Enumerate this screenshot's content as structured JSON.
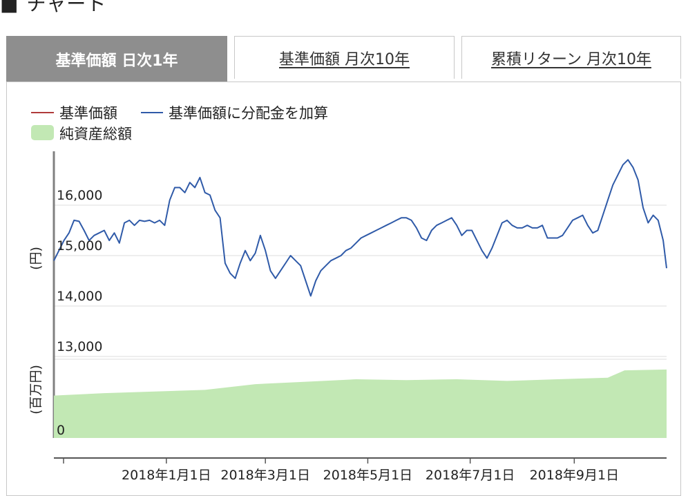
{
  "section": {
    "marker": "■",
    "title": "チャート"
  },
  "tabs": [
    {
      "label": "基準価額 日次1年",
      "active": true
    },
    {
      "label": "基準価額 月次10年",
      "active": false
    },
    {
      "label": "累積リターン 月次10年",
      "active": false
    }
  ],
  "colors": {
    "nav_line": "#b03a3a",
    "nav_dividend_line": "#2f5aa8",
    "net_assets_fill": "#c2e8b4",
    "grid": "#dddddd",
    "axis": "#808080",
    "active_tab": "#8e8e8e"
  },
  "chart_data": {
    "type": "line",
    "legend": [
      {
        "name": "基準価額",
        "marker": "line",
        "color": "#b03a3a"
      },
      {
        "name": "基準価額に分配金を加算",
        "marker": "line",
        "color": "#2f5aa8"
      },
      {
        "name": "純資産総額",
        "marker": "area",
        "color": "#c2e8b4"
      }
    ],
    "y_unit": "(円)",
    "y2_unit": "(百万円)",
    "yticks": [
      13000,
      14000,
      15000,
      16000
    ],
    "ytick_labels": [
      "13,000",
      "14,000",
      "15,000",
      "16,000"
    ],
    "ylim": [
      13000,
      17000
    ],
    "y2_label": "0",
    "xlim": [
      "2017-10-26",
      "2018-10-26"
    ],
    "xticks": [
      "2018-01-01",
      "2018-03-01",
      "2018-05-01",
      "2018-07-01",
      "2018-09-01"
    ],
    "xtick_labels": [
      "2018年1月1日",
      "2018年3月1日",
      "2018年5月1日",
      "2018年7月1日",
      "2018年9月1日"
    ],
    "series": [
      {
        "name": "基準価額に分配金を加算",
        "x": [
          "2017-10-26",
          "2017-10-29",
          "2017-11-01",
          "2017-11-04",
          "2017-11-07",
          "2017-11-10",
          "2017-11-13",
          "2017-11-16",
          "2017-11-19",
          "2017-11-22",
          "2017-11-25",
          "2017-11-28",
          "2017-12-01",
          "2017-12-04",
          "2017-12-07",
          "2017-12-10",
          "2017-12-13",
          "2017-12-16",
          "2017-12-19",
          "2017-12-22",
          "2017-12-25",
          "2017-12-28",
          "2017-12-31",
          "2018-01-03",
          "2018-01-06",
          "2018-01-09",
          "2018-01-12",
          "2018-01-15",
          "2018-01-18",
          "2018-01-21",
          "2018-01-24",
          "2018-01-27",
          "2018-01-30",
          "2018-02-02",
          "2018-02-05",
          "2018-02-08",
          "2018-02-11",
          "2018-02-14",
          "2018-02-17",
          "2018-02-20",
          "2018-02-23",
          "2018-02-26",
          "2018-03-01",
          "2018-03-04",
          "2018-03-07",
          "2018-03-10",
          "2018-03-13",
          "2018-03-16",
          "2018-03-19",
          "2018-03-22",
          "2018-03-25",
          "2018-03-28",
          "2018-03-31",
          "2018-04-03",
          "2018-04-06",
          "2018-04-09",
          "2018-04-12",
          "2018-04-15",
          "2018-04-18",
          "2018-04-21",
          "2018-04-24",
          "2018-04-27",
          "2018-04-30",
          "2018-05-03",
          "2018-05-06",
          "2018-05-09",
          "2018-05-12",
          "2018-05-15",
          "2018-05-18",
          "2018-05-21",
          "2018-05-24",
          "2018-05-27",
          "2018-05-30",
          "2018-06-02",
          "2018-06-05",
          "2018-06-08",
          "2018-06-11",
          "2018-06-14",
          "2018-06-17",
          "2018-06-20",
          "2018-06-23",
          "2018-06-26",
          "2018-06-29",
          "2018-07-02",
          "2018-07-05",
          "2018-07-08",
          "2018-07-11",
          "2018-07-14",
          "2018-07-17",
          "2018-07-20",
          "2018-07-23",
          "2018-07-26",
          "2018-07-29",
          "2018-08-01",
          "2018-08-04",
          "2018-08-07",
          "2018-08-10",
          "2018-08-13",
          "2018-08-16",
          "2018-08-19",
          "2018-08-22",
          "2018-08-25",
          "2018-08-28",
          "2018-08-31",
          "2018-09-03",
          "2018-09-06",
          "2018-09-09",
          "2018-09-12",
          "2018-09-15",
          "2018-09-18",
          "2018-09-21",
          "2018-09-24",
          "2018-09-27",
          "2018-09-30",
          "2018-10-03",
          "2018-10-06",
          "2018-10-09",
          "2018-10-12",
          "2018-10-15",
          "2018-10-18",
          "2018-10-21",
          "2018-10-24",
          "2018-10-26"
        ],
        "values": [
          14900,
          15100,
          15300,
          15450,
          15700,
          15680,
          15500,
          15300,
          15400,
          15450,
          15500,
          15300,
          15450,
          15250,
          15650,
          15700,
          15600,
          15700,
          15680,
          15700,
          15650,
          15700,
          15600,
          16100,
          16350,
          16350,
          16250,
          16450,
          16350,
          16550,
          16250,
          16200,
          15900,
          15750,
          14850,
          14650,
          14550,
          14850,
          15100,
          14900,
          15050,
          15400,
          15100,
          14700,
          14550,
          14700,
          14850,
          15000,
          14900,
          14800,
          14500,
          14200,
          14500,
          14700,
          14800,
          14900,
          14950,
          15000,
          15100,
          15150,
          15250,
          15350,
          15400,
          15450,
          15500,
          15550,
          15600,
          15650,
          15700,
          15750,
          15750,
          15700,
          15550,
          15350,
          15300,
          15500,
          15600,
          15650,
          15700,
          15750,
          15600,
          15400,
          15500,
          15500,
          15300,
          15100,
          14950,
          15150,
          15400,
          15650,
          15700,
          15600,
          15550,
          15550,
          15600,
          15550,
          15550,
          15600,
          15350,
          15350,
          15350,
          15400,
          15550,
          15700,
          15750,
          15800,
          15600,
          15450,
          15500,
          15800,
          16100,
          16400,
          16600,
          16800,
          16900,
          16750,
          16500,
          15950,
          15650,
          15800,
          15700,
          15300,
          14750
        ]
      },
      {
        "name": "純資産総額",
        "x": [
          "2017-10-26",
          "2017-11-25",
          "2017-12-25",
          "2018-01-24",
          "2018-02-23",
          "2018-03-25",
          "2018-04-24",
          "2018-05-24",
          "2018-06-23",
          "2018-07-23",
          "2018-08-22",
          "2018-09-21",
          "2018-10-01",
          "2018-10-26"
        ],
        "values": [
          0.52,
          0.55,
          0.57,
          0.59,
          0.66,
          0.69,
          0.72,
          0.71,
          0.72,
          0.7,
          0.72,
          0.74,
          0.83,
          0.84
        ]
      }
    ]
  }
}
